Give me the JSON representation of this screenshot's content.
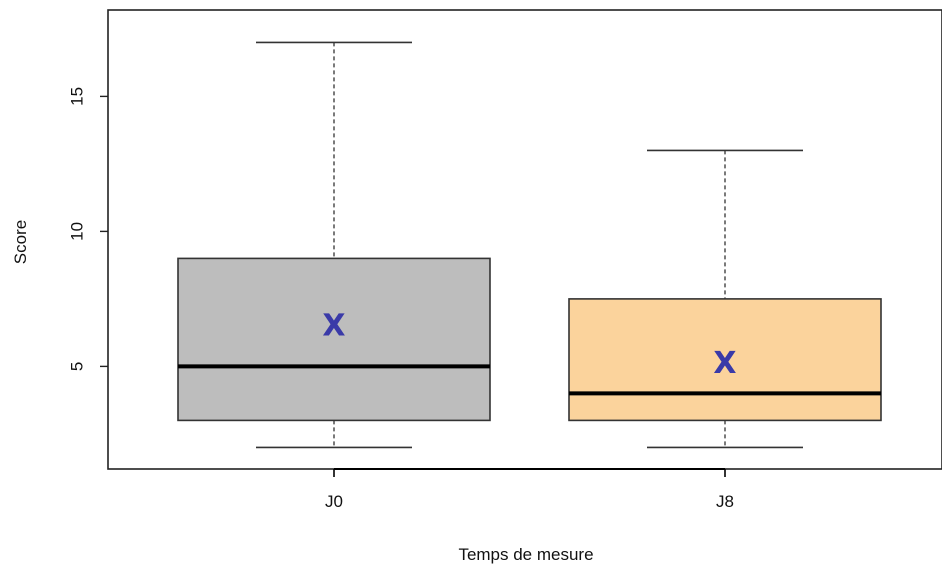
{
  "chart_data": {
    "type": "box",
    "title": "",
    "xlabel": "Temps de mesure",
    "ylabel": "Score",
    "ylim": [
      1.2,
      18.2
    ],
    "yticks": [
      5,
      10,
      15
    ],
    "ytick_labels": [
      "5",
      "10",
      "15"
    ],
    "grid": false,
    "categories": [
      "J0",
      "J8"
    ],
    "boxes": [
      {
        "category": "J0",
        "whisker_low": 2,
        "q1": 3,
        "median": 5,
        "q3": 9,
        "whisker_high": 17,
        "mean": 6.5,
        "mean_marker": "X",
        "fill_color": "#bdbdbd"
      },
      {
        "category": "J8",
        "whisker_low": 2,
        "q1": 3,
        "median": 4,
        "q3": 7.5,
        "whisker_high": 13,
        "mean": 5.1,
        "mean_marker": "X",
        "fill_color": "#fbd39c"
      }
    ],
    "colors": {
      "box_edge": "#333333",
      "median": "#000000",
      "mean": "#3a3aa8",
      "axis": "#222222"
    }
  }
}
